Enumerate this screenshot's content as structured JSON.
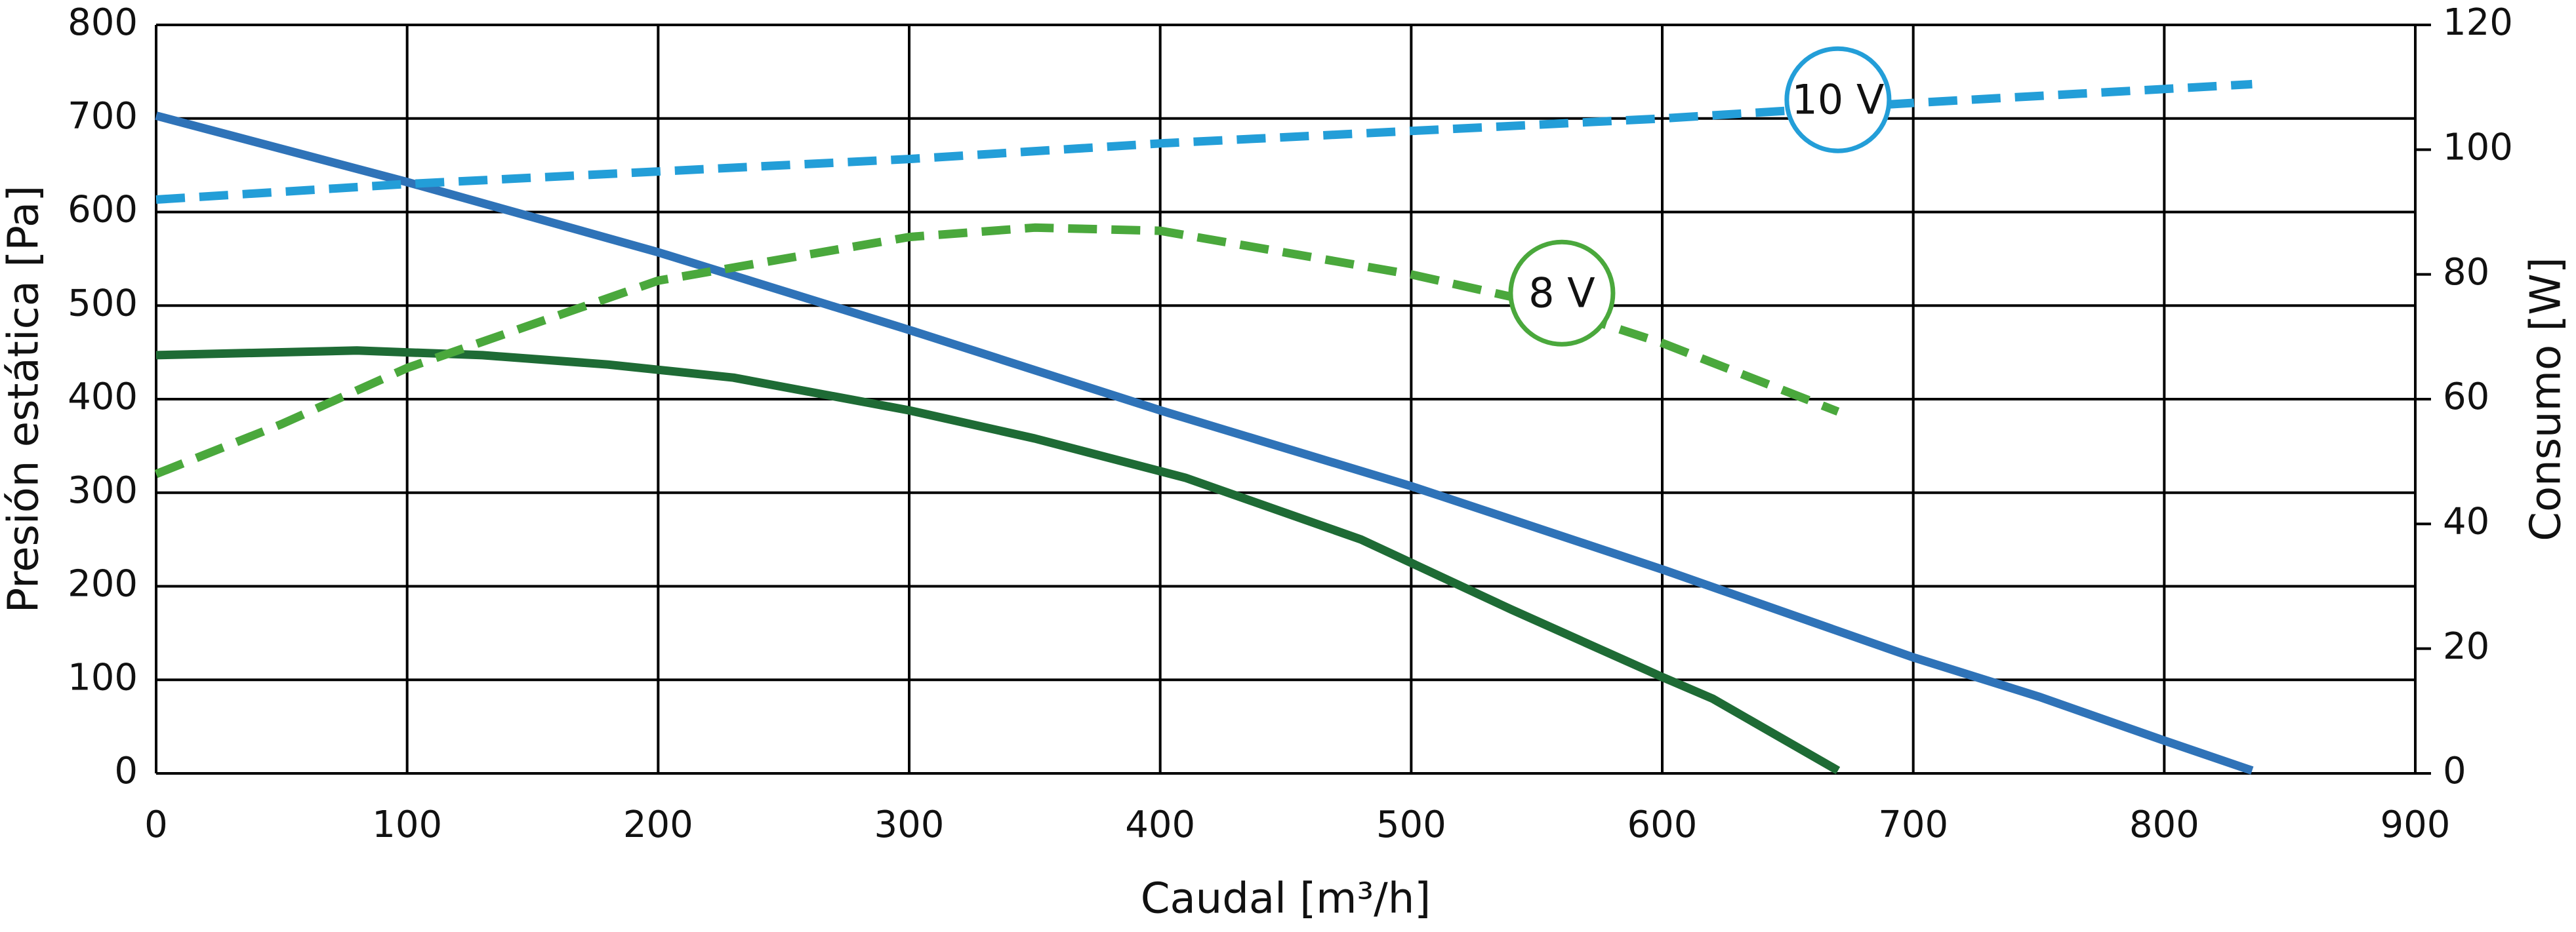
{
  "chart_data": {
    "type": "line",
    "xlabel": "Caudal [m³/h]",
    "ylabel": "Presión estática [Pa]",
    "y2label": "Consumo [W]",
    "xlim": [
      0,
      900
    ],
    "xticks": [
      0,
      100,
      200,
      300,
      400,
      500,
      600,
      700,
      800,
      900
    ],
    "ylim": [
      0,
      800
    ],
    "yticks": [
      0,
      100,
      200,
      300,
      400,
      500,
      600,
      700,
      800
    ],
    "y2lim": [
      0,
      120
    ],
    "y2ticks": [
      0,
      20,
      40,
      60,
      80,
      100,
      120
    ],
    "grid": true,
    "series": [
      {
        "color": "#2f73b8",
        "dashed": false,
        "x": [
          0,
          100,
          200,
          300,
          400,
          500,
          600,
          700,
          750,
          800,
          835
        ],
        "values": [
          703,
          632,
          557,
          474,
          388,
          307,
          218,
          124,
          82,
          35,
          3
        ]
      },
      {
        "color": "#1e6b35",
        "dashed": false,
        "x": [
          0,
          80,
          130,
          180,
          230,
          300,
          350,
          410,
          480,
          540,
          600,
          620,
          670
        ],
        "values": [
          447,
          452,
          447,
          437,
          423,
          388,
          358,
          316,
          250,
          175,
          103,
          80,
          3
        ]
      },
      {
        "color": "#239ed8",
        "dashed": true,
        "axis": "y2",
        "x": [
          0,
          100,
          200,
          300,
          400,
          500,
          600,
          700,
          835
        ],
        "values": [
          92,
          94.5,
          96.5,
          98.5,
          101,
          103,
          105,
          107.5,
          110.5
        ]
      },
      {
        "color": "#4aa83c",
        "dashed": true,
        "axis": "y2",
        "x": [
          0,
          50,
          100,
          200,
          300,
          350,
          400,
          500,
          550,
          600,
          670
        ],
        "values": [
          48,
          56,
          65,
          79,
          86,
          87.5,
          87,
          80,
          75.5,
          69,
          58
        ]
      }
    ],
    "annotations": [
      {
        "text": "10 V",
        "x": 670,
        "y2": 108,
        "color": "#239ed8"
      },
      {
        "text": "8 V",
        "x": 560,
        "y2": 77,
        "color": "#4aa83c"
      }
    ]
  }
}
